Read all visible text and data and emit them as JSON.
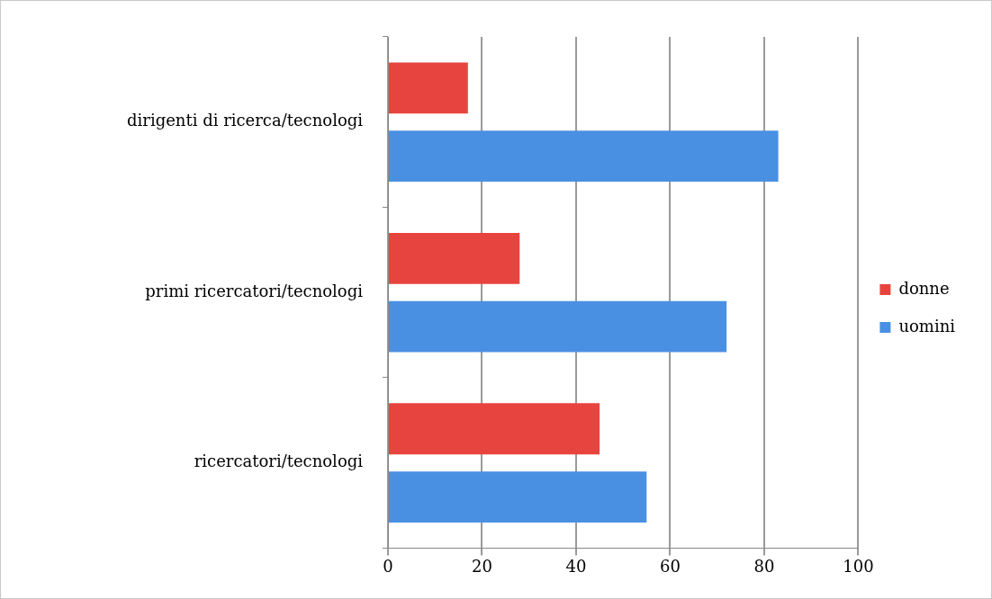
{
  "chart_data": {
    "type": "bar",
    "orientation": "horizontal",
    "categories": [
      "dirigenti di ricerca/tecnologi",
      "primi ricercatori/tecnologi",
      "ricercatori/tecnologi"
    ],
    "series": [
      {
        "name": "donne",
        "color": "#e8443f",
        "values": [
          17,
          28,
          45
        ]
      },
      {
        "name": "uomini",
        "color": "#4a90e2",
        "values": [
          83,
          72,
          55
        ]
      }
    ],
    "xlim": [
      0,
      100
    ],
    "xticks": [
      0,
      20,
      40,
      60,
      80,
      100
    ],
    "grid": "x",
    "legend": "right"
  }
}
